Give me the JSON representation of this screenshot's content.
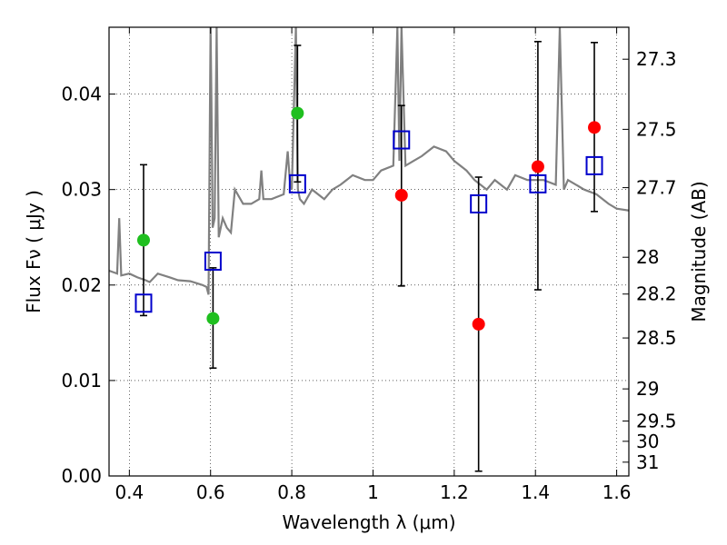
{
  "chart_data": {
    "type": "scatter",
    "title": "",
    "xlabel": "Wavelength  λ (μm)",
    "ylabel": "Flux  Fν  ( μJy )",
    "y2label": "Magnitude (AB)",
    "xlim": [
      0.35,
      1.63
    ],
    "ylim": [
      0.0,
      0.047
    ],
    "x_ticks": [
      0.4,
      0.6,
      0.8,
      1.0,
      1.2,
      1.4,
      1.6
    ],
    "x_tick_labels": [
      "0.4",
      "0.6",
      "0.8",
      "1",
      "1.2",
      "1.4",
      "1.6"
    ],
    "y_ticks": [
      0.0,
      0.01,
      0.02,
      0.03,
      0.04
    ],
    "y_tick_labels": [
      "0.00",
      "0.01",
      "0.02",
      "0.03",
      "0.04"
    ],
    "magnitude_ticks": [
      "27.3",
      "27.5",
      "27.7",
      "28",
      "28.2",
      "28.5",
      "29",
      "29.5",
      "30",
      "31"
    ],
    "grid": true,
    "colors": {
      "spectrum": "#808080",
      "optical_points": "#1fbf1f",
      "nir_points": "#ff0000",
      "model_boxes": "#0000cc",
      "errorbars": "#000000"
    },
    "spectrum": {
      "x": [
        0.35,
        0.37,
        0.375,
        0.38,
        0.4,
        0.42,
        0.44,
        0.45,
        0.47,
        0.5,
        0.52,
        0.55,
        0.58,
        0.59,
        0.595,
        0.6,
        0.602,
        0.605,
        0.61,
        0.615,
        0.62,
        0.63,
        0.64,
        0.65,
        0.66,
        0.68,
        0.7,
        0.72,
        0.725,
        0.73,
        0.75,
        0.78,
        0.79,
        0.795,
        0.8,
        0.81,
        0.815,
        0.82,
        0.83,
        0.85,
        0.88,
        0.9,
        0.92,
        0.95,
        0.98,
        1.0,
        1.02,
        1.05,
        1.06,
        1.065,
        1.07,
        1.08,
        1.1,
        1.12,
        1.15,
        1.18,
        1.2,
        1.23,
        1.25,
        1.28,
        1.3,
        1.33,
        1.35,
        1.38,
        1.4,
        1.42,
        1.45,
        1.46,
        1.47,
        1.48,
        1.5,
        1.52,
        1.55,
        1.58,
        1.6,
        1.63
      ],
      "y": [
        0.0215,
        0.0212,
        0.027,
        0.021,
        0.0212,
        0.0208,
        0.0205,
        0.0203,
        0.0212,
        0.0208,
        0.0205,
        0.0204,
        0.02,
        0.0198,
        0.019,
        0.047,
        0.04,
        0.026,
        0.027,
        0.047,
        0.025,
        0.027,
        0.026,
        0.0255,
        0.03,
        0.0285,
        0.0285,
        0.029,
        0.032,
        0.029,
        0.029,
        0.0295,
        0.034,
        0.031,
        0.03,
        0.047,
        0.03,
        0.029,
        0.0285,
        0.03,
        0.029,
        0.03,
        0.0305,
        0.0315,
        0.031,
        0.031,
        0.032,
        0.0325,
        0.047,
        0.033,
        0.047,
        0.0325,
        0.033,
        0.0335,
        0.0345,
        0.034,
        0.033,
        0.032,
        0.031,
        0.03,
        0.031,
        0.03,
        0.0315,
        0.031,
        0.031,
        0.031,
        0.0305,
        0.047,
        0.03,
        0.031,
        0.0305,
        0.03,
        0.0295,
        0.0285,
        0.028,
        0.0278
      ]
    },
    "series": [
      {
        "marker": "circle",
        "color": "#1fbf1f",
        "points": [
          {
            "x": 0.435,
            "y": 0.0247
          },
          {
            "x": 0.606,
            "y": 0.0165
          },
          {
            "x": 0.814,
            "y": 0.038
          }
        ]
      },
      {
        "marker": "circle",
        "color": "#ff0000",
        "points": [
          {
            "x": 1.07,
            "y": 0.0294
          },
          {
            "x": 1.26,
            "y": 0.0159
          },
          {
            "x": 1.406,
            "y": 0.0324
          },
          {
            "x": 1.545,
            "y": 0.0365
          }
        ]
      },
      {
        "marker": "open-square",
        "color": "#0000cc",
        "points": [
          {
            "x": 0.435,
            "y": 0.0181
          },
          {
            "x": 0.606,
            "y": 0.0225
          },
          {
            "x": 0.814,
            "y": 0.0306
          },
          {
            "x": 1.07,
            "y": 0.0352
          },
          {
            "x": 1.26,
            "y": 0.0285
          },
          {
            "x": 1.406,
            "y": 0.0306
          },
          {
            "x": 1.545,
            "y": 0.0325
          }
        ]
      }
    ],
    "errorbars": [
      {
        "x": 0.435,
        "low": 0.0168,
        "high": 0.0326
      },
      {
        "x": 0.606,
        "low": 0.0113,
        "high": 0.0218
      },
      {
        "x": 0.814,
        "low": 0.0308,
        "high": 0.0451
      },
      {
        "x": 1.07,
        "low": 0.0199,
        "high": 0.0388
      },
      {
        "x": 1.26,
        "low": 0.0005,
        "high": 0.0313
      },
      {
        "x": 1.406,
        "low": 0.0195,
        "high": 0.0455
      },
      {
        "x": 1.545,
        "low": 0.0277,
        "high": 0.0454
      }
    ]
  }
}
